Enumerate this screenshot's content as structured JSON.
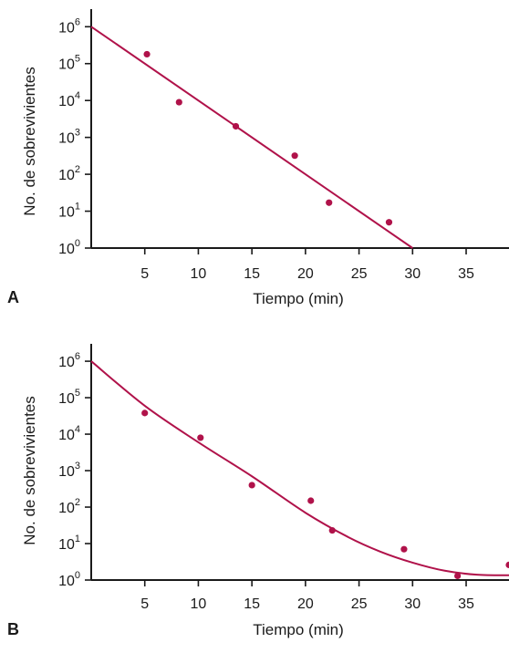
{
  "colors": {
    "data": "#b0124a",
    "axis": "#1a1a1a"
  },
  "chart_data": [
    {
      "type": "scatter",
      "panel_label": "A",
      "xlabel": "Tiempo (min)",
      "ylabel": "No. de sobrevivientes",
      "y_scale": "log",
      "xlim": [
        0,
        39
      ],
      "ylim": [
        1,
        3000000
      ],
      "x_ticks": [
        5,
        10,
        15,
        20,
        25,
        30,
        35
      ],
      "y_ticks": [
        {
          "base": "10",
          "exp": "0"
        },
        {
          "base": "10",
          "exp": "1"
        },
        {
          "base": "10",
          "exp": "2"
        },
        {
          "base": "10",
          "exp": "3"
        },
        {
          "base": "10",
          "exp": "4"
        },
        {
          "base": "10",
          "exp": "5"
        },
        {
          "base": "10",
          "exp": "6"
        }
      ],
      "series": [
        {
          "kind": "points",
          "x": [
            5.2,
            8.2,
            13.5,
            19,
            22.2,
            27.8
          ],
          "y": [
            180000,
            9000,
            2000,
            320,
            17,
            5
          ]
        },
        {
          "kind": "line",
          "x": [
            0,
            30
          ],
          "y": [
            1000000,
            1
          ]
        }
      ]
    },
    {
      "type": "scatter",
      "panel_label": "B",
      "xlabel": "Tiempo (min)",
      "ylabel": "No. de sobrevivientes",
      "y_scale": "log",
      "xlim": [
        0,
        39
      ],
      "ylim": [
        1,
        3000000
      ],
      "x_ticks": [
        5,
        10,
        15,
        20,
        25,
        30,
        35
      ],
      "y_ticks": [
        {
          "base": "10",
          "exp": "0"
        },
        {
          "base": "10",
          "exp": "1"
        },
        {
          "base": "10",
          "exp": "2"
        },
        {
          "base": "10",
          "exp": "3"
        },
        {
          "base": "10",
          "exp": "4"
        },
        {
          "base": "10",
          "exp": "5"
        },
        {
          "base": "10",
          "exp": "6"
        }
      ],
      "series": [
        {
          "kind": "points",
          "x": [
            5,
            10.2,
            15,
            20.5,
            22.5,
            29.2,
            34.2,
            39
          ],
          "y": [
            38000,
            8000,
            400,
            150,
            23,
            7,
            1.3,
            2.6
          ]
        },
        {
          "kind": "curve",
          "x": [
            0,
            5,
            10,
            15,
            20,
            24,
            27,
            30,
            33,
            36,
            39
          ],
          "y": [
            1000000,
            60000,
            6000,
            700,
            70,
            15,
            6,
            3,
            1.8,
            1.4,
            1.35
          ]
        }
      ]
    }
  ]
}
